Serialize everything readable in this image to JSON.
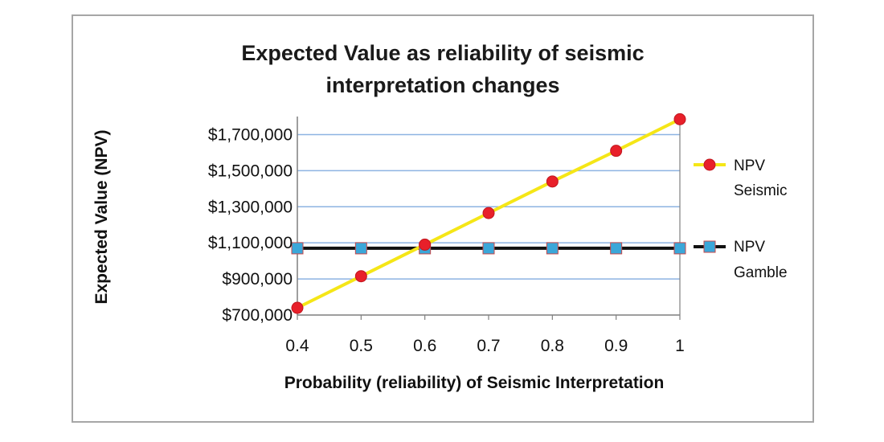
{
  "chart_data": {
    "type": "line",
    "title_lines": [
      "Expected Value as reliability of seismic",
      "interpretation changes"
    ],
    "xlabel": "Probability (reliability) of Seismic Interpretation",
    "ylabel": "Expected Value (NPV)",
    "x": [
      0.4,
      0.5,
      0.6,
      0.7,
      0.8,
      0.9,
      1.0
    ],
    "x_tick_labels": [
      "0.4",
      "0.5",
      "0.6",
      "0.7",
      "0.8",
      "0.9",
      "1"
    ],
    "ylim": [
      700000,
      1800000
    ],
    "y_ticks": [
      700000,
      900000,
      1100000,
      1300000,
      1500000,
      1700000
    ],
    "y_tick_labels": [
      "$700,000",
      "$900,000",
      "$1,100,000",
      "$1,300,000",
      "$1,500,000",
      "$1,700,000"
    ],
    "grid": "horizontal",
    "legend_position": "right",
    "series": [
      {
        "name_lines": [
          "NPV",
          "Seismic"
        ],
        "values": [
          740000,
          915000,
          1090000,
          1265000,
          1440000,
          1610000,
          1785000
        ],
        "line_color": "#f5e617",
        "marker": "circle",
        "marker_color": "#e8202a"
      },
      {
        "name_lines": [
          "NPV",
          "Gamble"
        ],
        "values": [
          1070000,
          1070000,
          1070000,
          1070000,
          1070000,
          1070000,
          1070000
        ],
        "line_color": "#111111",
        "marker": "square",
        "marker_color": "#3ba7d9",
        "marker_border": "#c8494a"
      }
    ],
    "gridline_color": "#8db3e2"
  }
}
